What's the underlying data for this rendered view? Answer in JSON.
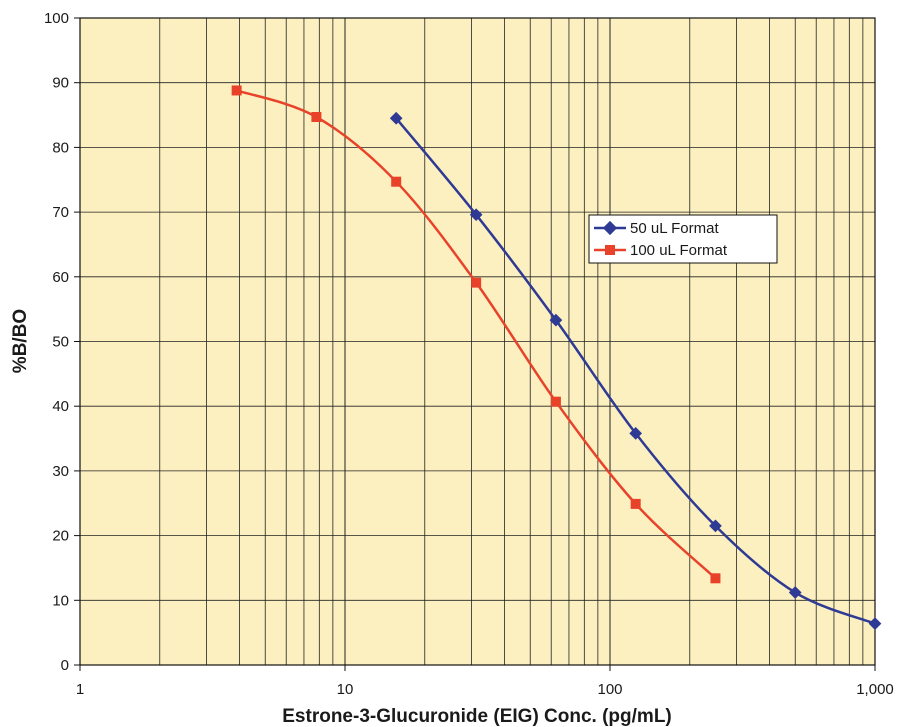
{
  "chart_data": {
    "type": "line",
    "xlabel": "Estrone-3-Glucuronide (EIG) Conc. (pg/mL)",
    "ylabel": "%B/BO",
    "xscale": "log",
    "xlim": [
      1,
      1000
    ],
    "ylim": [
      0,
      100
    ],
    "xticks": [
      1,
      10,
      100,
      1000
    ],
    "xtick_labels": [
      "1",
      "10",
      "100",
      "1,000"
    ],
    "yticks": [
      0,
      10,
      20,
      30,
      40,
      50,
      60,
      70,
      80,
      90,
      100
    ],
    "ytick_labels": [
      "0",
      "10",
      "20",
      "30",
      "40",
      "50",
      "60",
      "70",
      "80",
      "90",
      "100"
    ],
    "grid": true,
    "legend_position": "center-right",
    "plot_background": "#fdf0c0",
    "series": [
      {
        "name": "50 uL Format",
        "color": "#2e3a94",
        "marker": "diamond",
        "x": [
          15.6,
          31.25,
          62.5,
          125,
          250,
          500,
          1000
        ],
        "y": [
          84.5,
          69.6,
          53.3,
          35.8,
          21.5,
          11.2,
          6.4
        ]
      },
      {
        "name": "100 uL Format",
        "color": "#e8432a",
        "marker": "square",
        "x": [
          3.9,
          7.8,
          15.6,
          31.25,
          62.5,
          125,
          250
        ],
        "y": [
          88.8,
          84.7,
          74.7,
          59.1,
          40.7,
          24.9,
          13.4
        ]
      }
    ]
  }
}
